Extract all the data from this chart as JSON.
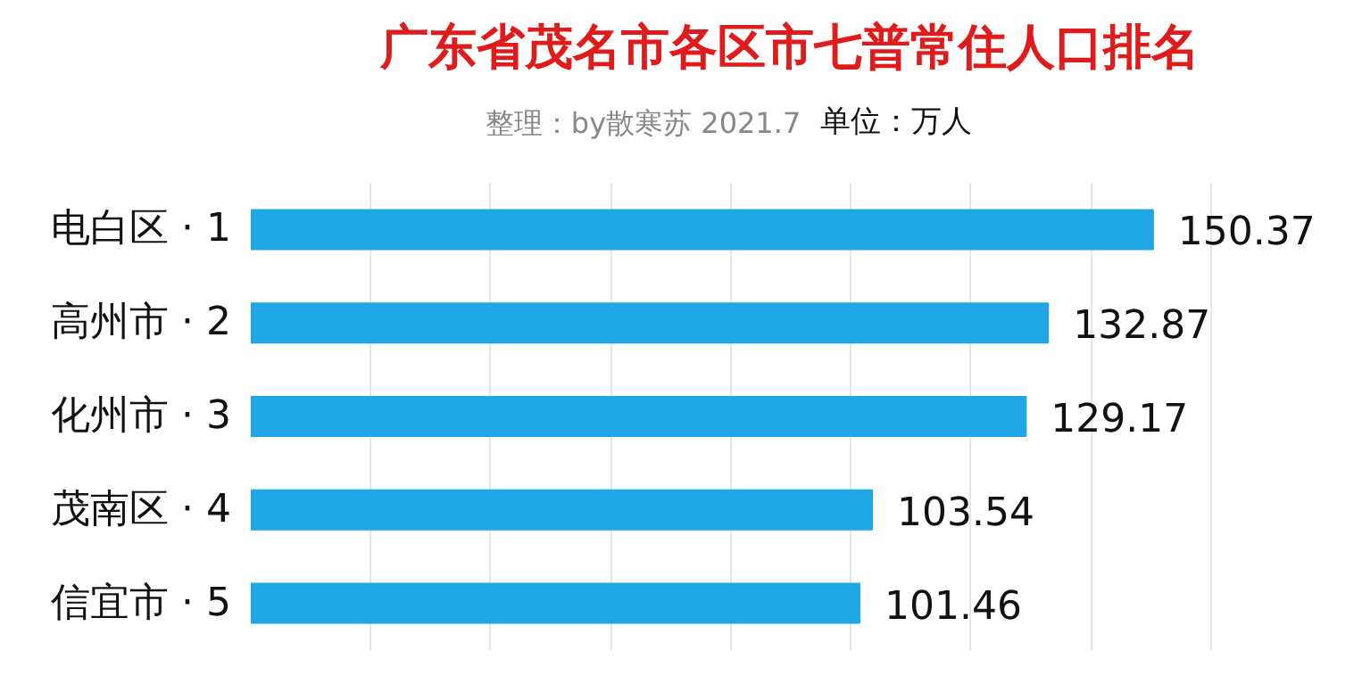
{
  "chart_data": {
    "type": "bar",
    "orientation": "horizontal",
    "title": "广东省茂名市各区市七普常住人口排名",
    "subtitle": "整理：by散寒苏  2021.7",
    "annotations": [
      "单位：万人"
    ],
    "categories": [
      "电白区 · 1",
      "高州市 · 2",
      "化州市 · 3",
      "茂南区 · 4",
      "信宜市 · 5"
    ],
    "values": [
      150.37,
      132.87,
      129.17,
      103.54,
      101.46
    ],
    "color": "#1ea7e4",
    "data_labels": true,
    "grid": "x",
    "tick_labels": "y"
  }
}
